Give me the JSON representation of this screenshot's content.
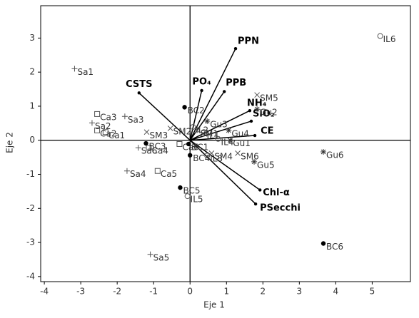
{
  "chart_data": {
    "type": "scatter",
    "x_label": "Eje 1",
    "y_label": "Eje 2",
    "xlim": [
      -4.1,
      6.05
    ],
    "ylim": [
      -4.15,
      3.95
    ],
    "xticks": [
      -4,
      -3,
      -2,
      -1,
      0,
      1,
      2,
      3,
      4,
      5
    ],
    "yticks": [
      -4,
      -3,
      -2,
      -1,
      0,
      1,
      2,
      3
    ],
    "color": "#000000",
    "series": [
      {
        "marker": "plus",
        "labels": [
          "Sa1",
          "Sa2",
          "Sa3",
          "Sa4",
          "Sa5",
          "Sa6"
        ],
        "x": [
          -3.17,
          -2.69,
          -1.79,
          -1.73,
          -1.09,
          -1.42
        ],
        "y": [
          2.1,
          0.51,
          0.7,
          -0.9,
          -3.35,
          -0.22
        ]
      },
      {
        "marker": "square",
        "labels": [
          "Ca1",
          "Ca2",
          "Ca3",
          "Ca4",
          "Ca5",
          "Ca6"
        ],
        "x": [
          -2.32,
          -2.55,
          -2.55,
          -1.13,
          -0.89,
          -0.29
        ],
        "y": [
          0.24,
          0.29,
          0.77,
          -0.22,
          -0.9,
          -0.11
        ]
      },
      {
        "marker": "dot",
        "labels": [
          "BC1",
          "BC2",
          "BC3",
          "BC4",
          "BC5",
          "BC6"
        ],
        "x": [
          -0.04,
          -0.15,
          -1.21,
          0,
          -0.27,
          3.66
        ],
        "y": [
          -0.11,
          0.97,
          -0.09,
          -0.44,
          -1.39,
          -3.03
        ]
      },
      {
        "marker": "circle",
        "labels": [
          "IL1",
          "IL2",
          "IL3",
          "IL4",
          "IL5",
          "IL6"
        ],
        "x": [
          0.38,
          0.08,
          0.47,
          0.77,
          -0.07,
          5.22
        ],
        "y": [
          0.24,
          0.39,
          -0.45,
          0.04,
          -1.64,
          3.06
        ]
      },
      {
        "marker": "x",
        "labels": [
          "SM1",
          "SM2",
          "SM3",
          "SM4",
          "SM5",
          "SM6"
        ],
        "x": [
          0.2,
          -0.54,
          -1.19,
          0.59,
          1.84,
          1.31
        ],
        "y": [
          0.29,
          0.35,
          0.24,
          -0.38,
          1.33,
          -0.38
        ]
      },
      {
        "marker": "star",
        "labels": [
          "Gu1",
          "Gu2",
          "Gu3",
          "Gu4",
          "Gu5",
          "Gu6"
        ],
        "x": [
          1.1,
          1.84,
          0.47,
          1.06,
          1.76,
          3.66
        ],
        "y": [
          0,
          0.91,
          0.56,
          0.29,
          -0.63,
          -0.34
        ]
      }
    ],
    "vectors": {
      "labels": [
        "PPN",
        "PO₄",
        "PPB",
        "CSTS",
        "NH₄",
        "SiO₂",
        "CE",
        "Chl-α",
        "PSecchi"
      ],
      "x": [
        1.25,
        0.32,
        0.94,
        -1.4,
        1.64,
        1.68,
        1.78,
        1.92,
        1.8
      ],
      "y": [
        2.69,
        1.46,
        1.43,
        1.39,
        0.87,
        0.56,
        0.14,
        -1.46,
        -1.87
      ]
    }
  }
}
